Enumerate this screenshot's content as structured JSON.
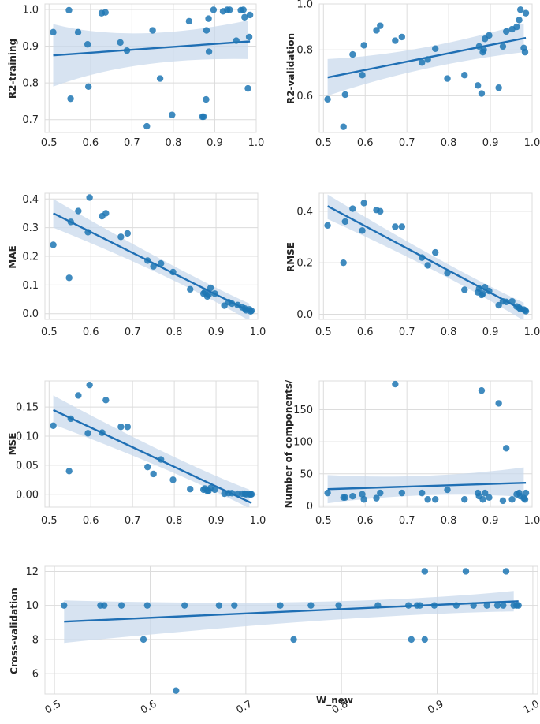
{
  "colors": {
    "point": "#1f77b4",
    "line": "#1f6fb4",
    "band": "#c9d9ec",
    "grid": "#dcdcdc",
    "axis_bg": "#ffffff"
  },
  "chart_data": [
    {
      "id": "r2train",
      "type": "scatter",
      "title": "",
      "xlabel": "",
      "ylabel": "R2-training",
      "xlim": [
        0.49,
        1.0
      ],
      "ylim": [
        0.665,
        1.015
      ],
      "xticks": [
        0.5,
        0.6,
        0.7,
        0.8,
        0.9,
        1.0
      ],
      "xtick_labels": [
        "0.5",
        "0.6",
        "0.7",
        "0.8",
        "0.9",
        "1.0"
      ],
      "yticks": [
        0.7,
        0.8,
        0.9,
        1.0
      ],
      "ytick_labels": [
        "0.7",
        "0.8",
        "0.9",
        "1.0"
      ],
      "fit": {
        "x0": 0.51,
        "y0": 0.875,
        "x1": 0.985,
        "y1": 0.913
      },
      "band": [
        [
          0.51,
          0.96,
          0.79
        ],
        [
          0.7,
          0.905,
          0.87
        ],
        [
          0.98,
          0.97,
          0.865
        ]
      ],
      "points": [
        [
          0.51,
          0.938
        ],
        [
          0.548,
          0.998
        ],
        [
          0.552,
          0.757
        ],
        [
          0.57,
          0.938
        ],
        [
          0.593,
          0.905
        ],
        [
          0.595,
          0.79
        ],
        [
          0.627,
          0.99
        ],
        [
          0.636,
          0.992
        ],
        [
          0.672,
          0.91
        ],
        [
          0.688,
          0.888
        ],
        [
          0.736,
          0.682
        ],
        [
          0.75,
          0.943
        ],
        [
          0.768,
          0.812
        ],
        [
          0.797,
          0.713
        ],
        [
          0.838,
          0.968
        ],
        [
          0.87,
          0.708
        ],
        [
          0.873,
          0.708
        ],
        [
          0.879,
          0.755
        ],
        [
          0.88,
          0.943
        ],
        [
          0.885,
          0.975
        ],
        [
          0.886,
          0.885
        ],
        [
          0.897,
          0.999
        ],
        [
          0.92,
          0.995
        ],
        [
          0.93,
          0.999
        ],
        [
          0.936,
          0.999
        ],
        [
          0.952,
          0.915
        ],
        [
          0.963,
          0.998
        ],
        [
          0.969,
          0.999
        ],
        [
          0.972,
          0.979
        ],
        [
          0.98,
          0.785
        ],
        [
          0.983,
          0.925
        ],
        [
          0.985,
          0.985
        ]
      ]
    },
    {
      "id": "r2val",
      "type": "scatter",
      "title": "",
      "xlabel": "",
      "ylabel": "R2-validation",
      "xlim": [
        0.49,
        1.0
      ],
      "ylim": [
        0.44,
        1.0
      ],
      "xticks": [
        0.5,
        0.6,
        0.7,
        0.8,
        0.9,
        1.0
      ],
      "xtick_labels": [
        "0.5",
        "0.6",
        "0.7",
        "0.8",
        "0.9",
        "1.0"
      ],
      "yticks": [
        0.6,
        0.8,
        1.0
      ],
      "ytick_labels": [
        "0.6",
        "0.8",
        "1.0"
      ],
      "fit": {
        "x0": 0.51,
        "y0": 0.68,
        "x1": 0.985,
        "y1": 0.852
      },
      "band": [
        [
          0.51,
          0.76,
          0.6
        ],
        [
          0.73,
          0.78,
          0.735
        ],
        [
          0.98,
          0.915,
          0.79
        ]
      ],
      "points": [
        [
          0.51,
          0.585
        ],
        [
          0.548,
          0.465
        ],
        [
          0.552,
          0.605
        ],
        [
          0.57,
          0.78
        ],
        [
          0.593,
          0.69
        ],
        [
          0.597,
          0.82
        ],
        [
          0.627,
          0.885
        ],
        [
          0.636,
          0.905
        ],
        [
          0.672,
          0.84
        ],
        [
          0.688,
          0.856
        ],
        [
          0.736,
          0.745
        ],
        [
          0.75,
          0.758
        ],
        [
          0.768,
          0.805
        ],
        [
          0.797,
          0.675
        ],
        [
          0.838,
          0.69
        ],
        [
          0.87,
          0.645
        ],
        [
          0.873,
          0.815
        ],
        [
          0.879,
          0.61
        ],
        [
          0.882,
          0.79
        ],
        [
          0.884,
          0.8
        ],
        [
          0.887,
          0.848
        ],
        [
          0.897,
          0.863
        ],
        [
          0.92,
          0.635
        ],
        [
          0.93,
          0.815
        ],
        [
          0.938,
          0.88
        ],
        [
          0.952,
          0.89
        ],
        [
          0.963,
          0.9
        ],
        [
          0.969,
          0.93
        ],
        [
          0.972,
          0.975
        ],
        [
          0.98,
          0.808
        ],
        [
          0.983,
          0.79
        ],
        [
          0.985,
          0.96
        ]
      ]
    },
    {
      "id": "mae",
      "type": "scatter",
      "title": "",
      "xlabel": "",
      "ylabel": "MAE",
      "xlim": [
        0.49,
        1.0
      ],
      "ylim": [
        -0.02,
        0.42
      ],
      "xticks": [
        0.5,
        0.6,
        0.7,
        0.8,
        0.9,
        1.0
      ],
      "xtick_labels": [
        "0.5",
        "0.6",
        "0.7",
        "0.8",
        "0.9",
        "1.0"
      ],
      "yticks": [
        0.0,
        0.1,
        0.2,
        0.3,
        0.4
      ],
      "ytick_labels": [
        "0.0",
        "0.1",
        "0.2",
        "0.3",
        "0.4"
      ],
      "fit": {
        "x0": 0.51,
        "y0": 0.35,
        "x1": 0.985,
        "y1": 0.005
      },
      "band": [
        [
          0.51,
          0.4,
          0.3
        ],
        [
          0.8,
          0.155,
          0.13
        ],
        [
          0.98,
          0.035,
          -0.025
        ]
      ],
      "points": [
        [
          0.51,
          0.24
        ],
        [
          0.548,
          0.125
        ],
        [
          0.552,
          0.32
        ],
        [
          0.57,
          0.358
        ],
        [
          0.593,
          0.284
        ],
        [
          0.597,
          0.405
        ],
        [
          0.627,
          0.34
        ],
        [
          0.636,
          0.35
        ],
        [
          0.672,
          0.268
        ],
        [
          0.688,
          0.28
        ],
        [
          0.736,
          0.185
        ],
        [
          0.75,
          0.165
        ],
        [
          0.768,
          0.175
        ],
        [
          0.797,
          0.145
        ],
        [
          0.838,
          0.085
        ],
        [
          0.87,
          0.07
        ],
        [
          0.873,
          0.075
        ],
        [
          0.879,
          0.06
        ],
        [
          0.882,
          0.065
        ],
        [
          0.887,
          0.09
        ],
        [
          0.897,
          0.07
        ],
        [
          0.92,
          0.028
        ],
        [
          0.93,
          0.04
        ],
        [
          0.938,
          0.035
        ],
        [
          0.952,
          0.03
        ],
        [
          0.963,
          0.022
        ],
        [
          0.969,
          0.018
        ],
        [
          0.972,
          0.012
        ],
        [
          0.98,
          0.015
        ],
        [
          0.983,
          0.008
        ],
        [
          0.985,
          0.01
        ]
      ]
    },
    {
      "id": "rmse",
      "type": "scatter",
      "title": "",
      "xlabel": "",
      "ylabel": "RMSE",
      "xlim": [
        0.49,
        1.0
      ],
      "ylim": [
        -0.02,
        0.47
      ],
      "xticks": [
        0.5,
        0.6,
        0.7,
        0.8,
        0.9,
        1.0
      ],
      "xtick_labels": [
        "0.5",
        "0.6",
        "0.7",
        "0.8",
        "0.9",
        "1.0"
      ],
      "yticks": [
        0.0,
        0.2,
        0.4
      ],
      "ytick_labels": [
        "0.0",
        "0.2",
        "0.4"
      ],
      "fit": {
        "x0": 0.51,
        "y0": 0.42,
        "x1": 0.985,
        "y1": 0.01
      },
      "band": [
        [
          0.51,
          0.465,
          0.37
        ],
        [
          0.8,
          0.18,
          0.155
        ],
        [
          0.98,
          0.045,
          -0.025
        ]
      ],
      "points": [
        [
          0.51,
          0.345
        ],
        [
          0.548,
          0.2
        ],
        [
          0.552,
          0.36
        ],
        [
          0.57,
          0.41
        ],
        [
          0.593,
          0.325
        ],
        [
          0.597,
          0.432
        ],
        [
          0.627,
          0.405
        ],
        [
          0.636,
          0.4
        ],
        [
          0.672,
          0.34
        ],
        [
          0.688,
          0.34
        ],
        [
          0.736,
          0.22
        ],
        [
          0.75,
          0.19
        ],
        [
          0.768,
          0.24
        ],
        [
          0.797,
          0.16
        ],
        [
          0.838,
          0.095
        ],
        [
          0.87,
          0.085
        ],
        [
          0.873,
          0.1
        ],
        [
          0.879,
          0.075
        ],
        [
          0.882,
          0.08
        ],
        [
          0.887,
          0.105
        ],
        [
          0.897,
          0.09
        ],
        [
          0.92,
          0.035
        ],
        [
          0.93,
          0.05
        ],
        [
          0.938,
          0.048
        ],
        [
          0.952,
          0.05
        ],
        [
          0.963,
          0.03
        ],
        [
          0.969,
          0.025
        ],
        [
          0.972,
          0.02
        ],
        [
          0.98,
          0.018
        ],
        [
          0.983,
          0.015
        ],
        [
          0.985,
          0.012
        ]
      ]
    },
    {
      "id": "mse",
      "type": "scatter",
      "title": "",
      "xlabel": "",
      "ylabel": "MSE",
      "xlim": [
        0.49,
        1.0
      ],
      "ylim": [
        -0.022,
        0.195
      ],
      "xticks": [
        0.5,
        0.6,
        0.7,
        0.8,
        0.9,
        1.0
      ],
      "xtick_labels": [
        "0.5",
        "0.6",
        "0.7",
        "0.8",
        "0.9",
        "1.0"
      ],
      "yticks": [
        0.0,
        0.05,
        0.1,
        0.15
      ],
      "ytick_labels": [
        "0.00",
        "0.05",
        "0.10",
        "0.15"
      ],
      "fit": {
        "x0": 0.51,
        "y0": 0.145,
        "x1": 0.985,
        "y1": -0.015
      },
      "band": [
        [
          0.51,
          0.17,
          0.12
        ],
        [
          0.8,
          0.058,
          0.042
        ],
        [
          0.98,
          0.008,
          -0.024
        ]
      ],
      "points": [
        [
          0.51,
          0.118
        ],
        [
          0.548,
          0.04
        ],
        [
          0.552,
          0.13
        ],
        [
          0.57,
          0.17
        ],
        [
          0.593,
          0.105
        ],
        [
          0.597,
          0.188
        ],
        [
          0.627,
          0.106
        ],
        [
          0.636,
          0.162
        ],
        [
          0.672,
          0.116
        ],
        [
          0.688,
          0.116
        ],
        [
          0.736,
          0.047
        ],
        [
          0.75,
          0.035
        ],
        [
          0.768,
          0.06
        ],
        [
          0.797,
          0.025
        ],
        [
          0.838,
          0.009
        ],
        [
          0.87,
          0.008
        ],
        [
          0.873,
          0.01
        ],
        [
          0.879,
          0.006
        ],
        [
          0.882,
          0.006
        ],
        [
          0.887,
          0.011
        ],
        [
          0.897,
          0.008
        ],
        [
          0.92,
          0.001
        ],
        [
          0.93,
          0.002
        ],
        [
          0.938,
          0.002
        ],
        [
          0.952,
          0.001
        ],
        [
          0.963,
          0.001
        ],
        [
          0.969,
          0.001
        ],
        [
          0.972,
          0.0
        ],
        [
          0.98,
          0.0
        ],
        [
          0.983,
          0.0
        ],
        [
          0.985,
          0.0
        ]
      ]
    },
    {
      "id": "ncomp",
      "type": "scatter",
      "title": "",
      "xlabel": "",
      "ylabel": "Number of  components/",
      "xlim": [
        0.49,
        1.0
      ],
      "ylim": [
        -2,
        195
      ],
      "xticks": [
        0.5,
        0.6,
        0.7,
        0.8,
        0.9,
        1.0
      ],
      "xtick_labels": [
        "0.5",
        "0.6",
        "0.7",
        "0.8",
        "0.9",
        "1.0"
      ],
      "yticks": [
        0,
        50,
        100,
        150
      ],
      "ytick_labels": [
        "0",
        "50",
        "100",
        "150"
      ],
      "fit": {
        "x0": 0.51,
        "y0": 26,
        "x1": 0.985,
        "y1": 36
      },
      "band": [
        [
          0.51,
          48,
          4
        ],
        [
          0.75,
          40,
          24
        ],
        [
          0.98,
          60,
          14
        ]
      ],
      "points": [
        [
          0.51,
          20
        ],
        [
          0.548,
          13
        ],
        [
          0.552,
          13
        ],
        [
          0.57,
          15
        ],
        [
          0.593,
          18
        ],
        [
          0.597,
          10
        ],
        [
          0.627,
          12
        ],
        [
          0.636,
          20
        ],
        [
          0.672,
          190
        ],
        [
          0.688,
          20
        ],
        [
          0.736,
          20
        ],
        [
          0.75,
          10
        ],
        [
          0.768,
          10
        ],
        [
          0.797,
          25
        ],
        [
          0.838,
          10
        ],
        [
          0.87,
          20
        ],
        [
          0.873,
          15
        ],
        [
          0.879,
          180
        ],
        [
          0.882,
          10
        ],
        [
          0.887,
          20
        ],
        [
          0.897,
          13
        ],
        [
          0.92,
          160
        ],
        [
          0.93,
          8
        ],
        [
          0.938,
          90
        ],
        [
          0.952,
          10
        ],
        [
          0.963,
          18
        ],
        [
          0.969,
          20
        ],
        [
          0.972,
          15
        ],
        [
          0.98,
          12
        ],
        [
          0.983,
          10
        ],
        [
          0.985,
          20
        ]
      ]
    },
    {
      "id": "cv",
      "type": "scatter",
      "title": "",
      "xlabel": "W_new",
      "ylabel": "Cross-validation",
      "xlim": [
        0.49,
        1.005
      ],
      "ylim": [
        4.8,
        12.3
      ],
      "xticks": [
        0.5,
        0.6,
        0.7,
        0.8,
        0.9,
        1.0
      ],
      "xtick_labels": [
        "0.5",
        "0.6",
        "0.7",
        "0.8",
        "0.9",
        "1.0"
      ],
      "yticks": [
        6,
        8,
        10,
        12
      ],
      "ytick_labels": [
        "6",
        "8",
        "10",
        "12"
      ],
      "fit": {
        "x0": 0.51,
        "y0": 9.05,
        "x1": 0.985,
        "y1": 10.25
      },
      "band": [
        [
          0.51,
          10.3,
          7.8
        ],
        [
          0.8,
          9.85,
          9.45
        ],
        [
          0.98,
          10.85,
          9.65
        ]
      ],
      "points": [
        [
          0.51,
          10
        ],
        [
          0.548,
          10
        ],
        [
          0.552,
          10
        ],
        [
          0.57,
          10
        ],
        [
          0.593,
          8
        ],
        [
          0.597,
          10
        ],
        [
          0.627,
          5
        ],
        [
          0.636,
          10
        ],
        [
          0.672,
          10
        ],
        [
          0.688,
          10
        ],
        [
          0.736,
          10
        ],
        [
          0.75,
          8
        ],
        [
          0.768,
          10
        ],
        [
          0.797,
          10
        ],
        [
          0.838,
          10
        ],
        [
          0.87,
          10
        ],
        [
          0.873,
          8
        ],
        [
          0.879,
          10
        ],
        [
          0.882,
          10
        ],
        [
          0.887,
          12
        ],
        [
          0.887,
          8
        ],
        [
          0.897,
          10
        ],
        [
          0.92,
          10
        ],
        [
          0.93,
          12
        ],
        [
          0.938,
          10
        ],
        [
          0.952,
          10
        ],
        [
          0.963,
          10
        ],
        [
          0.969,
          10
        ],
        [
          0.972,
          12
        ],
        [
          0.98,
          10
        ],
        [
          0.983,
          10
        ],
        [
          0.985,
          10
        ]
      ]
    }
  ]
}
